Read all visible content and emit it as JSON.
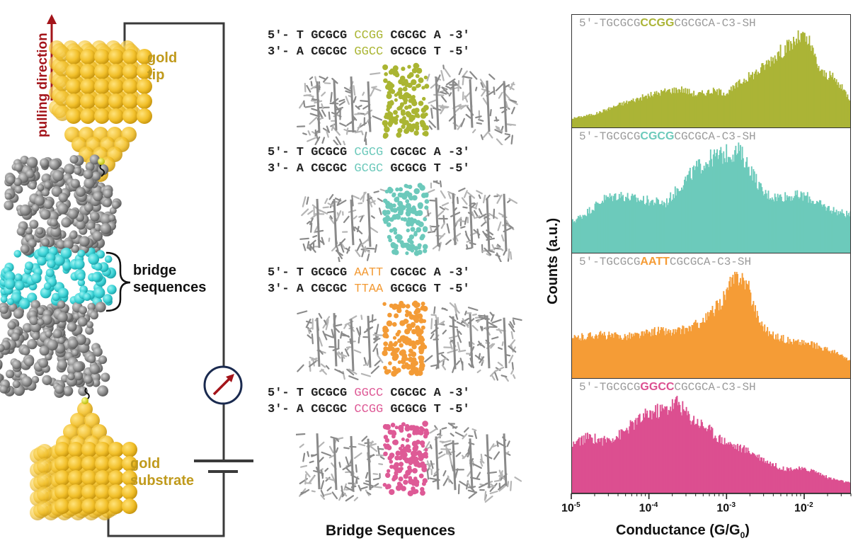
{
  "left_panel": {
    "pulling_label": "pulling direction",
    "tip_label": [
      "gold",
      "tip"
    ],
    "substrate_label": [
      "gold",
      "substrate"
    ],
    "bridge_label": [
      "bridge",
      "sequences"
    ],
    "colors": {
      "gold": "#f2c02a",
      "gold_label": "#c09a1c",
      "dna": "#8c8c8c",
      "bridge": "#3cd3d6",
      "arrow": "#a3141a",
      "circuit": "#3a3a3a",
      "meter_ring": "#1a2a4f"
    }
  },
  "middle_panel": {
    "title": "Bridge Sequences",
    "constructs": [
      {
        "name": "CCGG",
        "color": "#aab532",
        "top": {
          "prefix": "5′- T GCGCG ",
          "core": "CCGG",
          "suffix": " CGCGC A -3′"
        },
        "bottom": {
          "prefix": "3′- A CGCGC ",
          "core": "GGCC",
          "suffix": " GCGCG T -5′"
        }
      },
      {
        "name": "CGCG",
        "color": "#6cc9bb",
        "top": {
          "prefix": "5′- T GCGCG ",
          "core": "CGCG",
          "suffix": " CGCGC A -3′"
        },
        "bottom": {
          "prefix": "3′- A CGCGC ",
          "core": "GCGC",
          "suffix": " GCGCG T -5′"
        }
      },
      {
        "name": "AATT",
        "color": "#f39b36",
        "top": {
          "prefix": "5′- T GCGCG ",
          "core": "AATT",
          "suffix": " CGCGC A -3′"
        },
        "bottom": {
          "prefix": "3′- A CGCGC ",
          "core": "TTAA",
          "suffix": " GCGCG T -5′"
        }
      },
      {
        "name": "GGCC",
        "color": "#de5a96",
        "top": {
          "prefix": "5′- T GCGCG ",
          "core": "GGCC",
          "suffix": " CGCGC A -3′"
        },
        "bottom": {
          "prefix": "3′- A CGCGC ",
          "core": "CCGG",
          "suffix": " GCGCG T -5′"
        }
      }
    ]
  },
  "chart_data": {
    "type": "bar",
    "title": "",
    "xlabel": "Conductance (G/G0)",
    "ylabel": "Counts (a.u.)",
    "xscale": "log",
    "xlim": [
      1e-05,
      0.04
    ],
    "xticks": [
      {
        "value": 1e-05,
        "base": "10",
        "exp": "-5"
      },
      {
        "value": 0.0001,
        "base": "10",
        "exp": "-4"
      },
      {
        "value": 0.001,
        "base": "10",
        "exp": "-3"
      },
      {
        "value": 0.01,
        "base": "10",
        "exp": "-2"
      }
    ],
    "ylim": [
      0,
      1
    ],
    "grid": false,
    "legend": "none",
    "panels": [
      {
        "label_prefix": "5′-TGCGCG",
        "label_core": "CCGG",
        "label_suffix": "CGCGCA-C3-SH",
        "color": "#abb436",
        "peak_G": 0.01,
        "profile": [
          [
            -5.0,
            0.1
          ],
          [
            -4.7,
            0.15
          ],
          [
            -4.4,
            0.25
          ],
          [
            -4.1,
            0.33
          ],
          [
            -3.8,
            0.4
          ],
          [
            -3.6,
            0.42
          ],
          [
            -3.4,
            0.36
          ],
          [
            -3.2,
            0.4
          ],
          [
            -3.0,
            0.38
          ],
          [
            -2.8,
            0.52
          ],
          [
            -2.6,
            0.62
          ],
          [
            -2.4,
            0.78
          ],
          [
            -2.2,
            0.9
          ],
          [
            -2.05,
            1.0
          ],
          [
            -1.95,
            0.92
          ],
          [
            -1.8,
            0.6
          ],
          [
            -1.65,
            0.55
          ],
          [
            -1.5,
            0.4
          ],
          [
            -1.4,
            0.28
          ]
        ]
      },
      {
        "label_prefix": "5′-TGCGCG",
        "label_core": "CGCG",
        "label_suffix": "CGCGCA-C3-SH",
        "color": "#6ccabb",
        "peak_G": 0.0014,
        "profile": [
          [
            -5.0,
            0.3
          ],
          [
            -4.8,
            0.4
          ],
          [
            -4.6,
            0.52
          ],
          [
            -4.4,
            0.56
          ],
          [
            -4.2,
            0.52
          ],
          [
            -4.0,
            0.5
          ],
          [
            -3.8,
            0.48
          ],
          [
            -3.6,
            0.66
          ],
          [
            -3.4,
            0.82
          ],
          [
            -3.2,
            0.92
          ],
          [
            -3.0,
            0.96
          ],
          [
            -2.85,
            0.98
          ],
          [
            -2.7,
            0.8
          ],
          [
            -2.55,
            0.58
          ],
          [
            -2.4,
            0.54
          ],
          [
            -2.2,
            0.55
          ],
          [
            -2.0,
            0.55
          ],
          [
            -1.8,
            0.46
          ],
          [
            -1.6,
            0.4
          ],
          [
            -1.4,
            0.36
          ]
        ]
      },
      {
        "label_prefix": "5′-TGCGCG",
        "label_core": "AATT",
        "label_suffix": "CGCGCA-C3-SH",
        "color": "#f59c36",
        "peak_G": 0.0015,
        "profile": [
          [
            -5.0,
            0.38
          ],
          [
            -4.7,
            0.42
          ],
          [
            -4.4,
            0.4
          ],
          [
            -4.1,
            0.42
          ],
          [
            -3.9,
            0.46
          ],
          [
            -3.7,
            0.44
          ],
          [
            -3.5,
            0.48
          ],
          [
            -3.3,
            0.56
          ],
          [
            -3.1,
            0.72
          ],
          [
            -2.95,
            0.92
          ],
          [
            -2.85,
            1.0
          ],
          [
            -2.75,
            0.9
          ],
          [
            -2.6,
            0.56
          ],
          [
            -2.45,
            0.42
          ],
          [
            -2.2,
            0.36
          ],
          [
            -2.0,
            0.34
          ],
          [
            -1.8,
            0.3
          ],
          [
            -1.6,
            0.24
          ],
          [
            -1.4,
            0.16
          ]
        ]
      },
      {
        "label_prefix": "5′-TGCGCG",
        "label_core": "GGCC",
        "label_suffix": "CGCGCA-C3-SH",
        "color": "#dc4f90",
        "peak_G": 0.00022,
        "profile": [
          [
            -5.0,
            0.52
          ],
          [
            -4.8,
            0.6
          ],
          [
            -4.6,
            0.56
          ],
          [
            -4.4,
            0.62
          ],
          [
            -4.2,
            0.75
          ],
          [
            -4.0,
            0.86
          ],
          [
            -3.8,
            0.9
          ],
          [
            -3.65,
            0.98
          ],
          [
            -3.5,
            0.82
          ],
          [
            -3.3,
            0.72
          ],
          [
            -3.1,
            0.58
          ],
          [
            -2.9,
            0.5
          ],
          [
            -2.7,
            0.44
          ],
          [
            -2.5,
            0.34
          ],
          [
            -2.3,
            0.26
          ],
          [
            -2.1,
            0.26
          ],
          [
            -1.9,
            0.24
          ],
          [
            -1.7,
            0.16
          ],
          [
            -1.4,
            0.1
          ]
        ]
      }
    ]
  }
}
